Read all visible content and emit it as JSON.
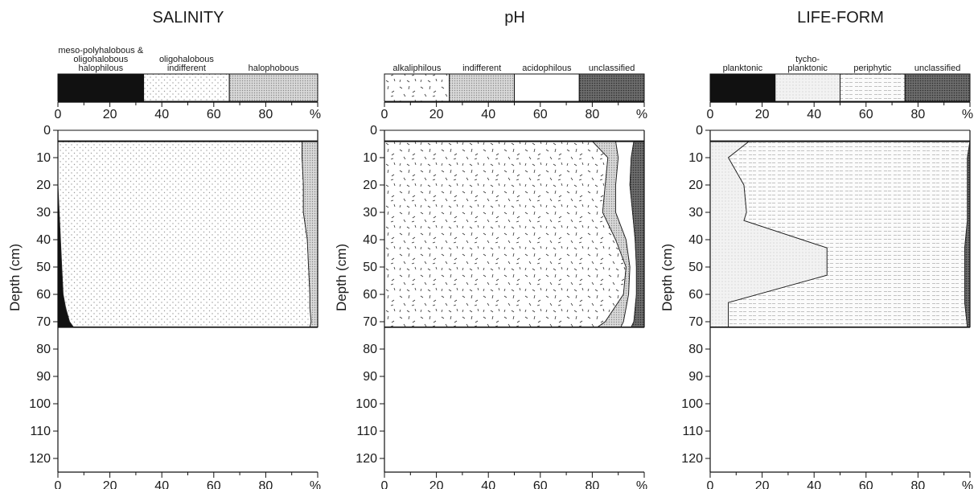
{
  "chart_data": [
    {
      "type": "area",
      "stacked": true,
      "orientation": "vertical-depth",
      "title": "SALINITY",
      "ylabel": "Depth (cm)",
      "xlabel": "%",
      "xlim": [
        0,
        100
      ],
      "ylim": [
        0,
        125
      ],
      "x_ticks": [
        0,
        20,
        40,
        60,
        80
      ],
      "y_ticks": [
        0,
        10,
        20,
        30,
        40,
        50,
        60,
        70,
        80,
        90,
        100,
        110,
        120
      ],
      "depths": [
        4,
        10,
        20,
        30,
        40,
        50,
        60,
        65,
        70,
        72
      ],
      "series": [
        {
          "name": "meso-polyhalobous & oligohalobous halophilous",
          "values": [
            0,
            0,
            0,
            0.5,
            1,
            1.5,
            2,
            3,
            4.5,
            6
          ],
          "fill": "black"
        },
        {
          "name": "oligohalobous indifferent",
          "values": [
            94,
            94,
            94.5,
            94,
            95,
            95,
            95,
            94,
            93,
            91
          ],
          "fill": "dots"
        },
        {
          "name": "halophobous",
          "values": [
            6,
            6,
            5.5,
            5.5,
            4,
            3.5,
            3,
            3,
            2.5,
            3
          ],
          "fill": "stipple"
        }
      ]
    },
    {
      "type": "area",
      "stacked": true,
      "orientation": "vertical-depth",
      "title": "pH",
      "ylabel": "Depth (cm)",
      "xlabel": "%",
      "xlim": [
        0,
        100
      ],
      "ylim": [
        0,
        125
      ],
      "x_ticks": [
        0,
        20,
        40,
        60,
        80
      ],
      "y_ticks": [
        0,
        10,
        20,
        30,
        40,
        50,
        60,
        70,
        80,
        90,
        100,
        110,
        120
      ],
      "depths": [
        4,
        10,
        20,
        30,
        40,
        50,
        60,
        70,
        72
      ],
      "series": [
        {
          "name": "alkaliphilous",
          "values": [
            80,
            86,
            85,
            84,
            89,
            93,
            92,
            85,
            82
          ],
          "fill": "dashes"
        },
        {
          "name": "indifferent",
          "values": [
            9,
            4,
            4,
            5,
            4,
            1.5,
            2,
            7,
            9
          ],
          "fill": "stipple"
        },
        {
          "name": "acidophilous",
          "values": [
            7,
            5,
            5.5,
            6.5,
            3.5,
            2.5,
            3,
            4,
            4
          ],
          "fill": "white"
        },
        {
          "name": "unclassified",
          "values": [
            4,
            5,
            5.5,
            4.5,
            3.5,
            3,
            3,
            4,
            5
          ],
          "fill": "dark"
        }
      ]
    },
    {
      "type": "area",
      "stacked": true,
      "orientation": "vertical-depth",
      "title": "LIFE-FORM",
      "ylabel": "Depth (cm)",
      "xlabel": "%",
      "xlim": [
        0,
        100
      ],
      "ylim": [
        0,
        125
      ],
      "x_ticks": [
        0,
        20,
        40,
        60,
        80
      ],
      "y_ticks": [
        0,
        10,
        20,
        30,
        40,
        50,
        60,
        70,
        80,
        90,
        100,
        110,
        120
      ],
      "depths": [
        4,
        10,
        20,
        30,
        33,
        43,
        53,
        63,
        72
      ],
      "series": [
        {
          "name": "planktonic",
          "values": [
            0,
            0,
            0,
            0,
            0,
            0,
            0,
            0,
            0
          ],
          "fill": "black"
        },
        {
          "name": "tycho-planktonic",
          "values": [
            15,
            7,
            13,
            14,
            13,
            45,
            45,
            7,
            7
          ],
          "fill": "light-stipple"
        },
        {
          "name": "periphytic",
          "values": [
            85,
            92,
            86,
            85,
            86,
            53,
            53,
            91,
            92
          ],
          "fill": "hatch"
        },
        {
          "name": "unclassified",
          "values": [
            0,
            1,
            1,
            1,
            1,
            2,
            2,
            2,
            1
          ],
          "fill": "dark"
        }
      ]
    }
  ],
  "panels": [
    {
      "title": "SALINITY",
      "x_unit": "%",
      "y_axis_label": "Depth (cm)",
      "legend": [
        {
          "lines": [
            "meso-polyhalobous &",
            "oligohalobous",
            "halophilous"
          ],
          "fill": "black",
          "from": 0,
          "to": 33
        },
        {
          "lines": [
            "oligohalobous",
            "indifferent"
          ],
          "fill": "dots",
          "from": 33,
          "to": 66
        },
        {
          "lines": [
            "halophobous"
          ],
          "fill": "stipple",
          "from": 66,
          "to": 100
        }
      ]
    },
    {
      "title": "pH",
      "x_unit": "%",
      "y_axis_label": "Depth (cm)",
      "legend": [
        {
          "lines": [
            "alkaliphilous"
          ],
          "fill": "dashes",
          "from": 0,
          "to": 25
        },
        {
          "lines": [
            "indifferent"
          ],
          "fill": "stipple",
          "from": 25,
          "to": 50
        },
        {
          "lines": [
            "acidophilous"
          ],
          "fill": "white",
          "from": 50,
          "to": 75
        },
        {
          "lines": [
            "unclassified"
          ],
          "fill": "dark",
          "from": 75,
          "to": 100
        }
      ]
    },
    {
      "title": "LIFE-FORM",
      "x_unit": "%",
      "y_axis_label": "Depth (cm)",
      "legend": [
        {
          "lines": [
            "planktonic"
          ],
          "fill": "black",
          "from": 0,
          "to": 25
        },
        {
          "lines": [
            "tycho-",
            "planktonic"
          ],
          "fill": "light-stipple",
          "from": 25,
          "to": 50
        },
        {
          "lines": [
            "periphytic"
          ],
          "fill": "hatch",
          "from": 50,
          "to": 75
        },
        {
          "lines": [
            "unclassified"
          ],
          "fill": "dark",
          "from": 75,
          "to": 100
        }
      ]
    }
  ]
}
